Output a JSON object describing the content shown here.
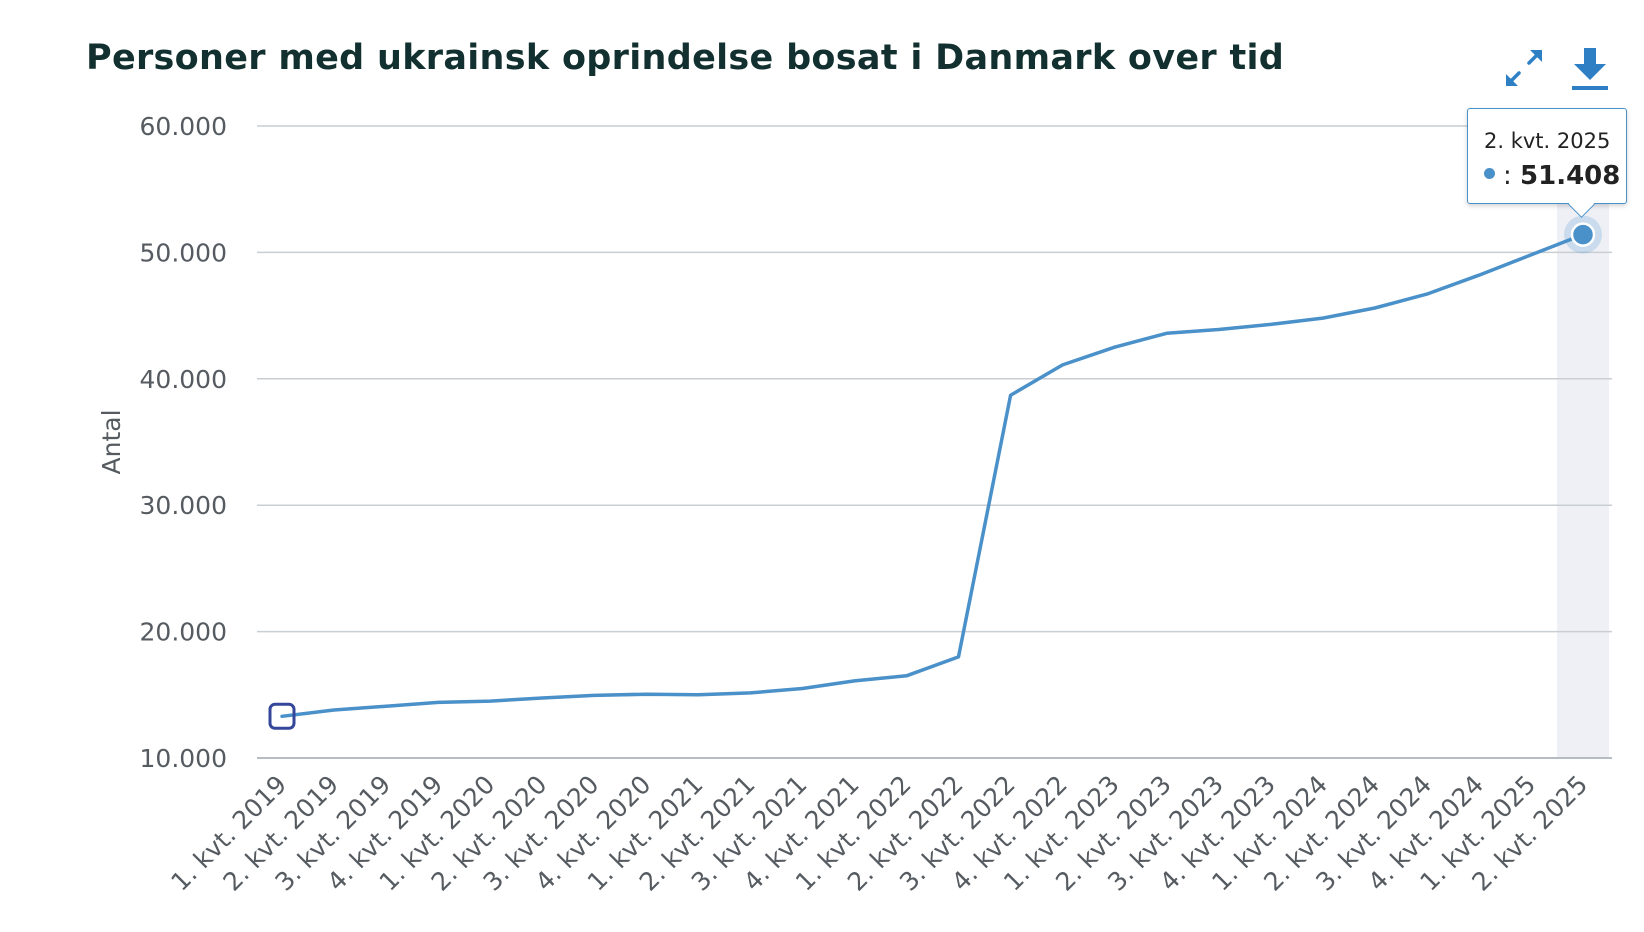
{
  "title": "Personer med ukrainsk oprindelse bosat i Danmark over tid",
  "icons": {
    "expand": "expand-arrows-icon",
    "download": "download-icon"
  },
  "colors": {
    "line": "#4a90c9",
    "title": "#12302f",
    "grid": "#c9ced3",
    "highlight_band": "#eef0f6",
    "first_marker": "#35479a"
  },
  "tooltip": {
    "label": "2. kvt. 2025",
    "separator": ":",
    "value": "51.408"
  },
  "chart_data": {
    "type": "line",
    "title": "Personer med ukrainsk oprindelse bosat i Danmark over tid",
    "xlabel": "",
    "ylabel": "Antal",
    "ylim": [
      10000,
      60000
    ],
    "yticks": [
      10000,
      20000,
      30000,
      40000,
      50000,
      60000
    ],
    "ytick_labels": [
      "10.000",
      "20.000",
      "30.000",
      "40.000",
      "50.000",
      "60.000"
    ],
    "grid": true,
    "x": [
      "1. kvt. 2019",
      "2. kvt. 2019",
      "3. kvt. 2019",
      "4. kvt. 2019",
      "1. kvt. 2020",
      "2. kvt. 2020",
      "3. kvt. 2020",
      "4. kvt. 2020",
      "1. kvt. 2021",
      "2. kvt. 2021",
      "3. kvt. 2021",
      "4. kvt. 2021",
      "1. kvt. 2022",
      "2. kvt. 2022",
      "3. kvt. 2022",
      "4. kvt. 2022",
      "1. kvt. 2023",
      "2. kvt. 2023",
      "3. kvt. 2023",
      "4. kvt. 2023",
      "1. kvt. 2024",
      "2. kvt. 2024",
      "3. kvt. 2024",
      "4. kvt. 2024",
      "1. kvt. 2025",
      "2. kvt. 2025"
    ],
    "series": [
      {
        "values": [
          13300,
          13800,
          14100,
          14400,
          14500,
          14750,
          14950,
          15050,
          15000,
          15150,
          15500,
          16100,
          16500,
          18000,
          38700,
          41100,
          42500,
          43600,
          43900,
          44300,
          44800,
          45600,
          46700,
          48200,
          49800,
          51408
        ]
      }
    ],
    "highlighted_index": 25
  }
}
